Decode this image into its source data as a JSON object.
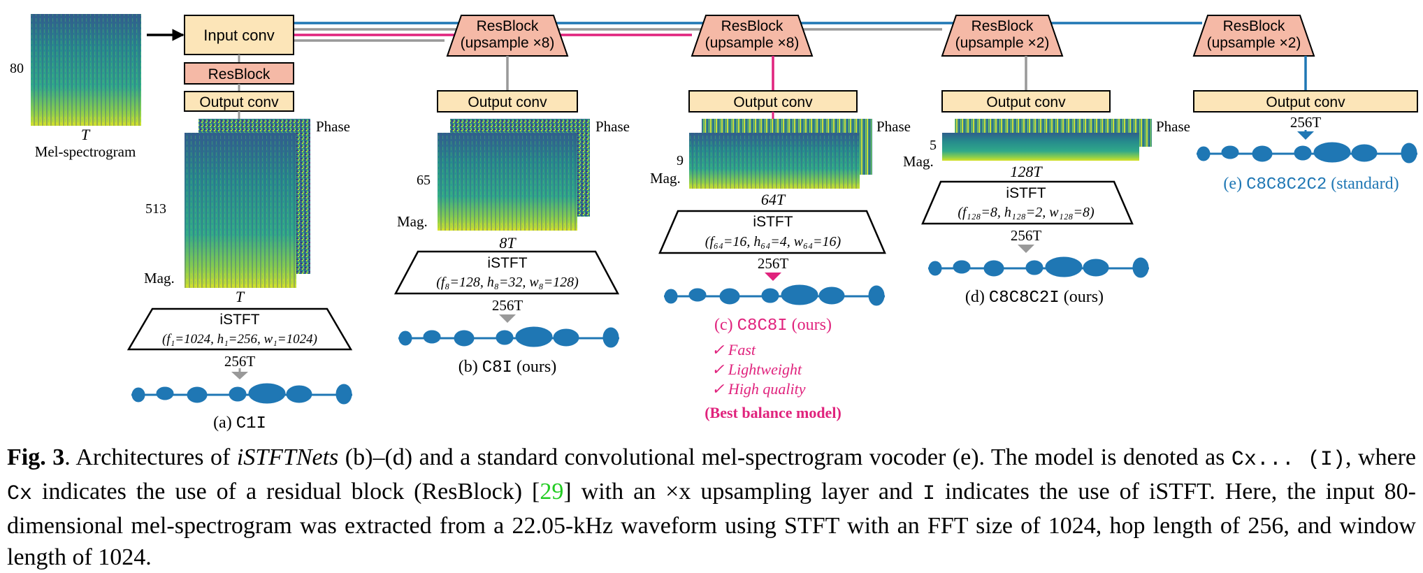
{
  "colors": {
    "orange_fill": "#FCE5B8",
    "salmon_fill": "#F5B9A6",
    "blue": "#1F77B4",
    "magenta": "#E0237D",
    "gray": "#999999",
    "green": "#22AA44",
    "ref_green": "#22CC22"
  },
  "input": {
    "mel_dim": "80",
    "time_label": "T",
    "mel_label": "Mel-spectrogram",
    "input_conv": "Input conv"
  },
  "models": {
    "a": {
      "resblock": "ResBlock",
      "output_conv": "Output conv",
      "phase": "Phase",
      "mag": "Mag.",
      "freq_bins": "513",
      "frame_rate": "T",
      "istft": "iSTFT",
      "params": "(f₁=1024, h₁=256, w₁=1024)",
      "out_rate": "256T",
      "label_prefix": "(a) ",
      "label_code": "C1I",
      "label_suffix": ""
    },
    "b": {
      "resblock_line1": "ResBlock",
      "resblock_line2": "(upsample ×8)",
      "output_conv": "Output conv",
      "phase": "Phase",
      "mag": "Mag.",
      "freq_bins": "65",
      "frame_rate": "8T",
      "istft": "iSTFT",
      "params": "(f₈=128, h₈=32, w₈=128)",
      "out_rate": "256T",
      "label_prefix": "(b) ",
      "label_code": "C8I",
      "label_suffix": " (ours)"
    },
    "c": {
      "resblock_line1": "ResBlock",
      "resblock_line2": "(upsample ×8)",
      "output_conv": "Output conv",
      "phase": "Phase",
      "mag": "Mag.",
      "freq_bins": "9",
      "frame_rate": "64T",
      "istft": "iSTFT",
      "params": "(f₆₄=16, h₆₄=4, w₆₄=16)",
      "out_rate": "256T",
      "label_prefix": "(c) ",
      "label_code": "C8C8I",
      "label_suffix": " (ours)",
      "checks": [
        "✓ Fast",
        "✓ Lightweight",
        "✓ High quality"
      ],
      "best": "(Best balance model)"
    },
    "d": {
      "resblock_line1": "ResBlock",
      "resblock_line2": "(upsample ×2)",
      "output_conv": "Output conv",
      "phase": "Phase",
      "mag": "Mag.",
      "freq_bins": "5",
      "frame_rate": "128T",
      "istft": "iSTFT",
      "params": "(f₁₂₈=8, h₁₂₈=2, w₁₂₈=8)",
      "out_rate": "256T",
      "label_prefix": "(d) ",
      "label_code": "C8C8C2I",
      "label_suffix": " (ours)"
    },
    "e": {
      "resblock_line1": "ResBlock",
      "resblock_line2": "(upsample ×2)",
      "output_conv": "Output conv",
      "out_rate": "256T",
      "label_prefix": "(e) ",
      "label_code": "C8C8C2C2",
      "label_suffix": " (standard)"
    }
  },
  "caption": {
    "fig": "Fig. 3",
    "s1": ".  Architectures of ",
    "s1_em": "iSTFTNets",
    "s2": " (b)–(d) and a standard convolutional mel-spectrogram vocoder (e).  The model is denoted as ",
    "code1": "Cx... (I)",
    "s3": ", where ",
    "code2": "Cx",
    "s4": " indicates the use of a residual block (ResBlock) [",
    "ref": "29",
    "s5": "] with an ×x upsampling layer and ",
    "code3": "I",
    "s6": " indicates the use of iSTFT. Here, the input 80-dimensional mel-spectrogram was extracted from a 22.05-kHz waveform using STFT with an FFT size of 1024, hop length of 256, and window length of 1024."
  }
}
